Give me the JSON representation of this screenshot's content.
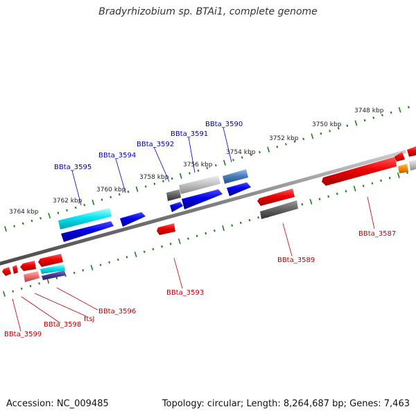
{
  "title": "Bradyrhizobium sp. BTAi1, complete genome",
  "footer": {
    "accession": "Accession: NC_009485",
    "summary": "Topology: circular; Length: 8,264,687 bp; Genes: 7,463"
  },
  "colors": {
    "backbone": "#808080",
    "ruler_tick": "#1a7f1a",
    "label_forward": "#0000b0",
    "label_reverse": "#c00000"
  },
  "kbp_labels": [
    "3764 kbp",
    "3762 kbp",
    "3760 kbp",
    "3758 kbp",
    "3756 kbp",
    "3754 kbp",
    "3752 kbp",
    "3750 kbp",
    "3748 kbp"
  ],
  "gene_labels": {
    "forward": [
      "BBta_3595",
      "BBta_3594",
      "BBta_3592",
      "BBta_3591",
      "BBta_3590"
    ],
    "reverse": [
      "BBta_3587",
      "BBta_3589",
      "BBta_3593",
      "BBta_3596",
      "ftsJ",
      "BBta_3598",
      "BBta_3599"
    ]
  }
}
